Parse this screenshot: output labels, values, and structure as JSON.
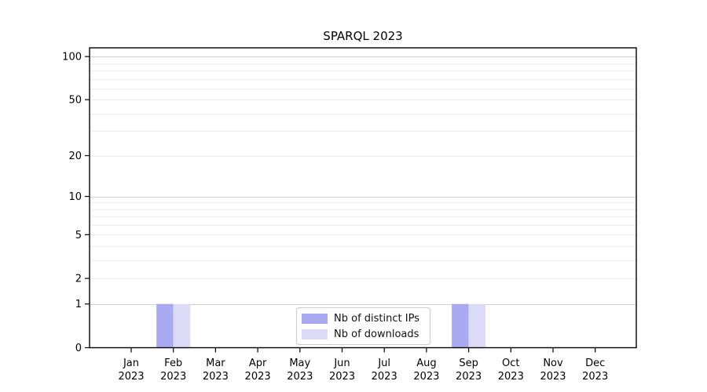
{
  "chart_data": {
    "type": "bar",
    "title": "SPARQL 2023",
    "categories": [
      [
        "Jan",
        "2023"
      ],
      [
        "Feb",
        "2023"
      ],
      [
        "Mar",
        "2023"
      ],
      [
        "Apr",
        "2023"
      ],
      [
        "May",
        "2023"
      ],
      [
        "Jun",
        "2023"
      ],
      [
        "Jul",
        "2023"
      ],
      [
        "Aug",
        "2023"
      ],
      [
        "Sep",
        "2023"
      ],
      [
        "Oct",
        "2023"
      ],
      [
        "Nov",
        "2023"
      ],
      [
        "Dec",
        "2023"
      ]
    ],
    "series": [
      {
        "name": "Nb of distinct IPs",
        "color": "#a9a9f2",
        "values": [
          0,
          1,
          0,
          0,
          0,
          0,
          0,
          0,
          1,
          0,
          0,
          0
        ]
      },
      {
        "name": "Nb of downloads",
        "color": "#dbdbf8",
        "values": [
          0,
          1,
          0,
          0,
          0,
          0,
          0,
          0,
          1,
          0,
          0,
          0
        ]
      }
    ],
    "xlabel": "",
    "ylabel": "",
    "yscale": "log1p",
    "ylim": [
      0,
      115
    ],
    "y_major_ticks": [
      0,
      1,
      2,
      5,
      10,
      20,
      50,
      100
    ],
    "grid_minor_values": [
      2,
      3,
      4,
      5,
      6,
      7,
      8,
      9,
      20,
      30,
      40,
      50,
      60,
      70,
      80,
      90
    ],
    "grid_major_values": [
      1,
      10,
      100
    ],
    "grid": "on",
    "legend": {
      "position": "lower center",
      "entries": [
        "Nb of distinct IPs",
        "Nb of downloads"
      ]
    },
    "colors": {
      "grid_minor": "#ededed",
      "grid_major": "#cfcfcf",
      "axis": "#000000",
      "text": "#000000",
      "legend_border": "#cbcbcb"
    }
  }
}
